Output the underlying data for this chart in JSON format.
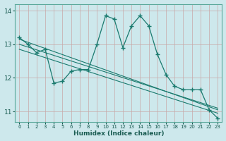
{
  "title": "",
  "xlabel": "Humidex (Indice chaleur)",
  "ylabel": "",
  "bg_color": "#cde8ec",
  "grid_color": "#c8a8a8",
  "line_color": "#1a7a6e",
  "ylim": [
    10.7,
    14.2
  ],
  "yticks": [
    11,
    12,
    13,
    14
  ],
  "xlim": [
    -0.5,
    23.5
  ],
  "xticks": [
    0,
    1,
    2,
    3,
    4,
    5,
    6,
    7,
    8,
    9,
    10,
    11,
    12,
    13,
    14,
    15,
    16,
    17,
    18,
    19,
    20,
    21,
    22,
    23
  ],
  "series_main": {
    "x": [
      0,
      1,
      2,
      3,
      4,
      5,
      6,
      7,
      8,
      9,
      10,
      11,
      12,
      13,
      14,
      15,
      16,
      17,
      18,
      19,
      20,
      21,
      22,
      23
    ],
    "y": [
      13.2,
      13.0,
      12.75,
      12.85,
      11.85,
      11.9,
      12.2,
      12.25,
      12.25,
      13.0,
      13.85,
      13.75,
      12.9,
      13.55,
      13.85,
      13.55,
      12.7,
      12.1,
      11.75,
      11.65,
      11.65,
      11.65,
      11.05,
      10.8
    ]
  },
  "series_trends": [
    {
      "x": [
        0,
        23
      ],
      "y": [
        13.15,
        11.05
      ]
    },
    {
      "x": [
        0,
        23
      ],
      "y": [
        13.0,
        11.1
      ]
    },
    {
      "x": [
        0,
        23
      ],
      "y": [
        12.85,
        10.95
      ]
    }
  ]
}
